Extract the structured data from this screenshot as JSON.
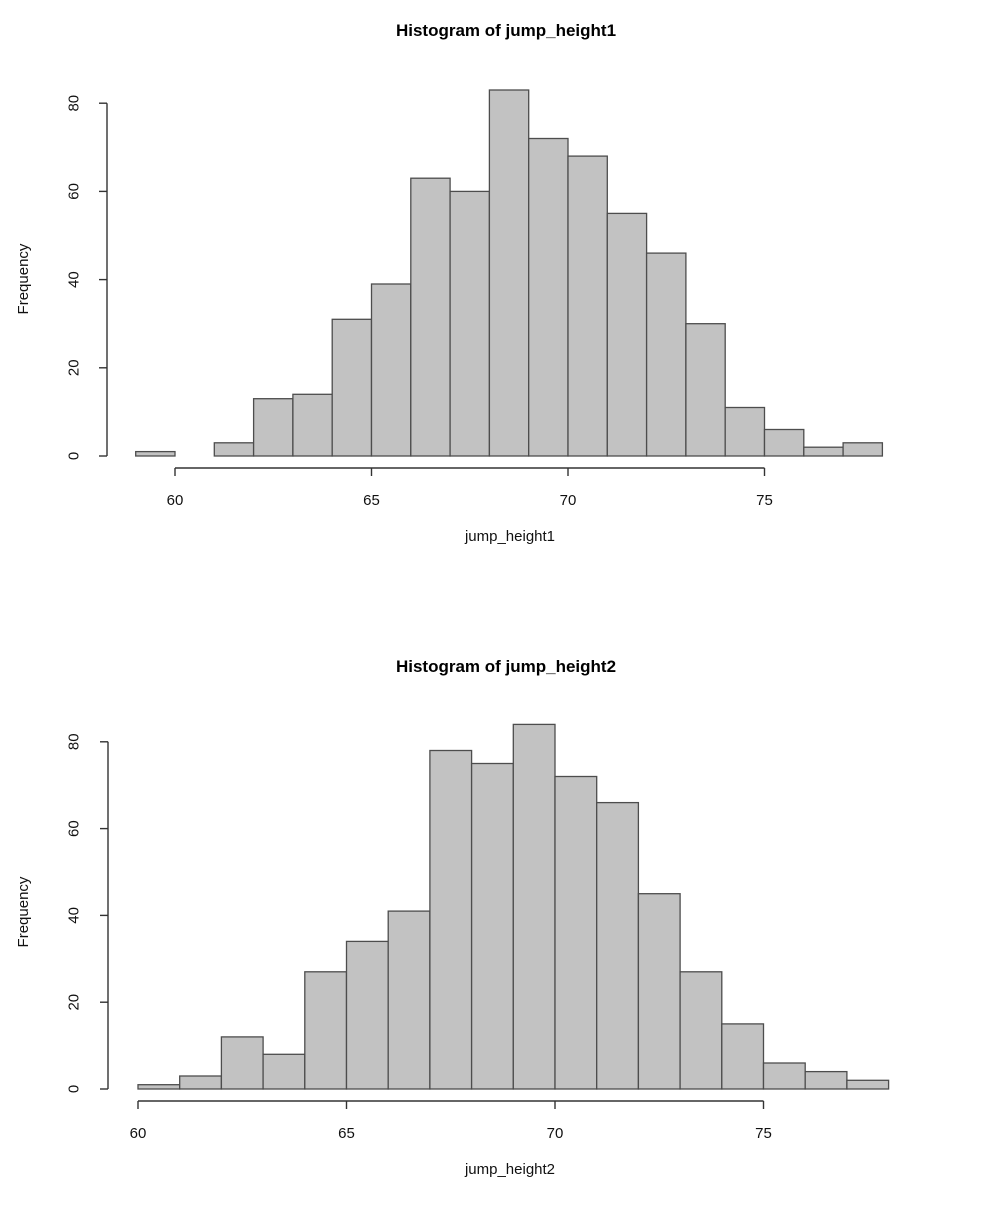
{
  "figure": {
    "background": "#ffffff",
    "kind": "R base graphics, two stacked histograms"
  },
  "colors": {
    "bar_fill": "#c2c2c2",
    "bar_border": "#4d4d4d",
    "axis_line": "#333333",
    "text": "#000000"
  },
  "chart_data": [
    {
      "type": "bar",
      "subtype": "histogram",
      "title": "Histogram of jump_height1",
      "xlabel": "jump_height1",
      "ylabel": "Frequency",
      "bin_start": 59,
      "bin_width": 1,
      "counts": [
        1,
        0,
        3,
        13,
        14,
        31,
        39,
        63,
        60,
        83,
        72,
        68,
        55,
        46,
        30,
        11,
        6,
        2,
        3
      ],
      "x_ticks": [
        60,
        65,
        70,
        75
      ],
      "y_ticks": [
        0,
        20,
        40,
        60,
        80
      ],
      "x_range": [
        59,
        78
      ],
      "ylim": [
        0,
        85
      ],
      "grid": false,
      "legend": false,
      "total_n": 600
    },
    {
      "type": "bar",
      "subtype": "histogram",
      "title": "Histogram of jump_height2",
      "xlabel": "jump_height2",
      "ylabel": "Frequency",
      "bin_start": 60,
      "bin_width": 1,
      "counts": [
        1,
        3,
        12,
        8,
        27,
        34,
        41,
        78,
        75,
        84,
        72,
        66,
        45,
        27,
        15,
        6,
        4,
        2
      ],
      "x_ticks": [
        60,
        65,
        70,
        75
      ],
      "y_ticks": [
        0,
        20,
        40,
        60,
        80
      ],
      "x_range": [
        60,
        78
      ],
      "ylim": [
        0,
        85
      ],
      "grid": false,
      "legend": false,
      "total_n": 600
    }
  ]
}
